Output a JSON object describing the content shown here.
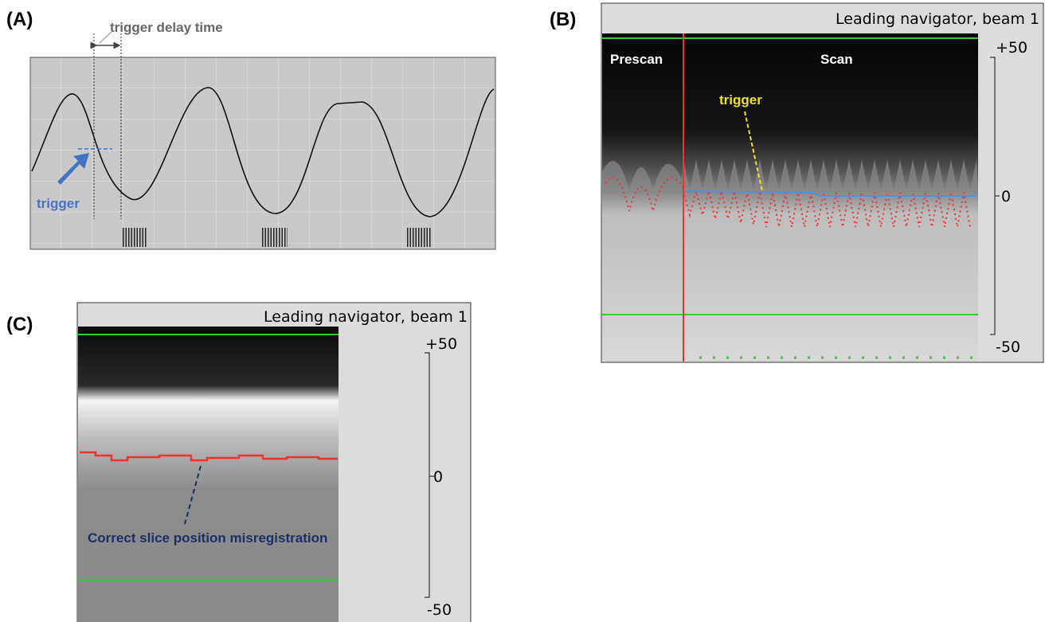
{
  "panels": [
    {
      "label": "(A)",
      "delay_label": "trigger delay time",
      "trigger_label": "trigger"
    },
    {
      "label": "(B)",
      "title": "Leading navigator, beam 1",
      "scale": [
        "+50",
        "0",
        "-50"
      ],
      "regions": [
        "Prescan",
        "Scan"
      ],
      "trigger_label": "trigger"
    },
    {
      "label": "(C)",
      "title": "Leading navigator, beam 1",
      "scale": [
        "+50",
        "0",
        "-50"
      ],
      "note": "Correct slice position misregistration"
    }
  ]
}
